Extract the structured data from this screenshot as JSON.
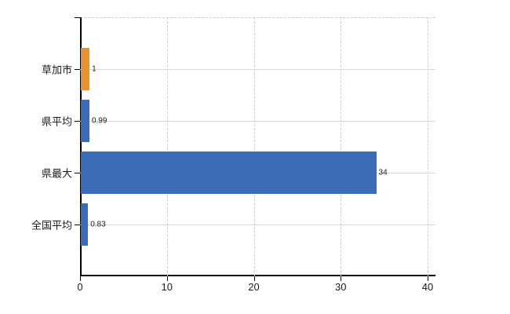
{
  "chart_data": {
    "type": "bar",
    "orientation": "horizontal",
    "title": "",
    "xlabel": "",
    "ylabel": "",
    "categories": [
      "草加市",
      "県平均",
      "県最大",
      "全国平均"
    ],
    "values": [
      1,
      0.99,
      34,
      0.83
    ],
    "value_labels": [
      "1",
      "0.99",
      "34",
      "0.83"
    ],
    "bar_colors": [
      "#ea9232",
      "#3b6cb5",
      "#3b6cb5",
      "#3b6cb5"
    ],
    "x_ticks": [
      0,
      10,
      20,
      30,
      40
    ],
    "x_tick_labels": [
      "0",
      "10",
      "20",
      "30",
      "40"
    ],
    "xlim": [
      0,
      40
    ],
    "grid": true,
    "legend": false
  },
  "colors": {
    "highlight_bar": "#ea9232",
    "default_bar": "#3b6cb5",
    "gridline": "#d5dcd5",
    "axis": "#000000",
    "background": "#ffffff"
  }
}
